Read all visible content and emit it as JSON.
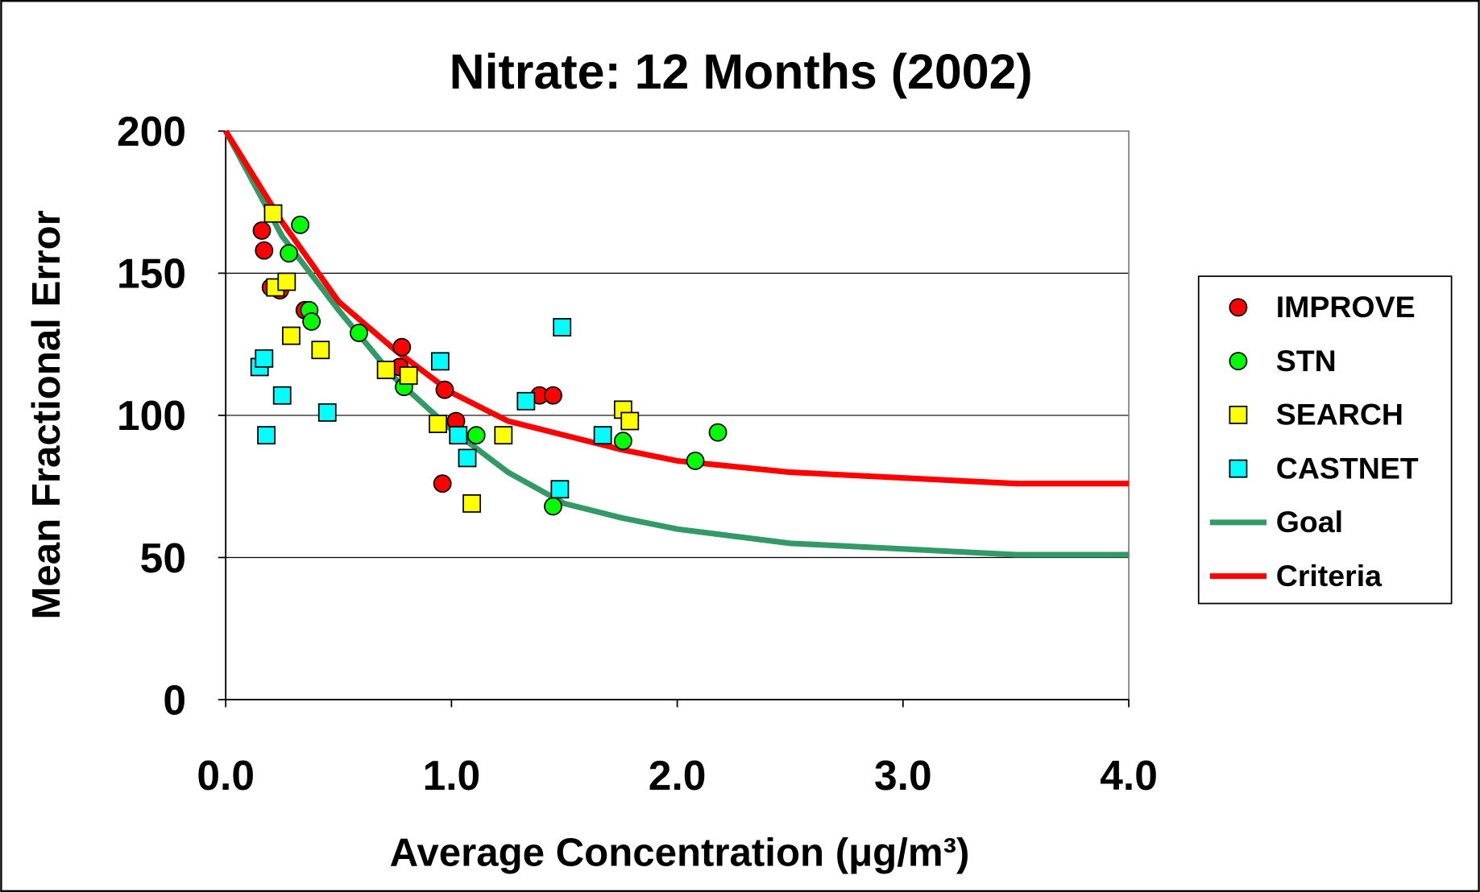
{
  "chart_data": {
    "type": "scatter",
    "title": "Nitrate: 12 Months (2002)",
    "xlabel": "Average Concentration (μg/m³)",
    "ylabel": "Mean Fractional Error",
    "xlim": [
      0,
      4
    ],
    "ylim": [
      0,
      200
    ],
    "xticks": [
      {
        "value": 0,
        "label": "0.0"
      },
      {
        "value": 1,
        "label": "1.0"
      },
      {
        "value": 2,
        "label": "2.0"
      },
      {
        "value": 3,
        "label": "3.0"
      },
      {
        "value": 4,
        "label": "4.0"
      }
    ],
    "yticks": [
      0,
      50,
      100,
      150,
      200
    ],
    "grid": true,
    "legend": "right",
    "series": [
      {
        "name": "IMPROVE",
        "color": "#ff0000",
        "marker": "circle",
        "x": [
          0.16,
          0.17,
          0.2,
          0.24,
          0.35,
          0.78,
          0.77,
          0.97,
          1.02,
          0.96,
          1.39,
          1.45
        ],
        "values": [
          165,
          158,
          145,
          144,
          137,
          124,
          117,
          109,
          98,
          76,
          107,
          107
        ]
      },
      {
        "name": "STN",
        "color": "#00ff00",
        "marker": "circle",
        "x": [
          0.33,
          0.28,
          0.37,
          0.38,
          0.59,
          0.79,
          1.11,
          1.45,
          1.76,
          2.08,
          2.18
        ],
        "values": [
          167,
          157,
          137,
          133,
          129,
          110,
          93,
          68,
          91,
          84,
          94
        ]
      },
      {
        "name": "SEARCH",
        "color": "#ffff00",
        "marker": "square",
        "x": [
          0.21,
          0.22,
          0.27,
          0.29,
          0.42,
          0.71,
          0.81,
          0.94,
          1.09,
          1.23,
          1.76,
          1.79
        ],
        "values": [
          171,
          145,
          147,
          128,
          123,
          116,
          114,
          97,
          69,
          93,
          102,
          98
        ]
      },
      {
        "name": "CASTNET",
        "color": "#00ffff",
        "marker": "square",
        "x": [
          0.15,
          0.17,
          0.18,
          0.25,
          0.45,
          0.95,
          1.03,
          1.07,
          1.33,
          1.49,
          1.48,
          1.67
        ],
        "values": [
          117,
          120,
          93,
          107,
          101,
          119,
          93,
          85,
          105,
          131,
          74,
          93
        ]
      },
      {
        "name": "Goal",
        "color": "#339966",
        "marker": "line",
        "x": [
          0,
          0.25,
          0.5,
          0.75,
          1,
          1.25,
          1.5,
          1.75,
          2,
          2.5,
          3,
          3.5,
          4
        ],
        "values": [
          200,
          163,
          137,
          113,
          95,
          80,
          69,
          64,
          60,
          55,
          53,
          51,
          51
        ]
      },
      {
        "name": "Criteria",
        "color": "#ff0000",
        "marker": "line",
        "x": [
          0,
          0.25,
          0.5,
          0.75,
          1,
          1.25,
          1.5,
          1.75,
          2,
          2.5,
          3,
          3.5,
          4
        ],
        "values": [
          200,
          168,
          140,
          123,
          108,
          98,
          93,
          88,
          84,
          80,
          78,
          76,
          76
        ]
      }
    ]
  }
}
